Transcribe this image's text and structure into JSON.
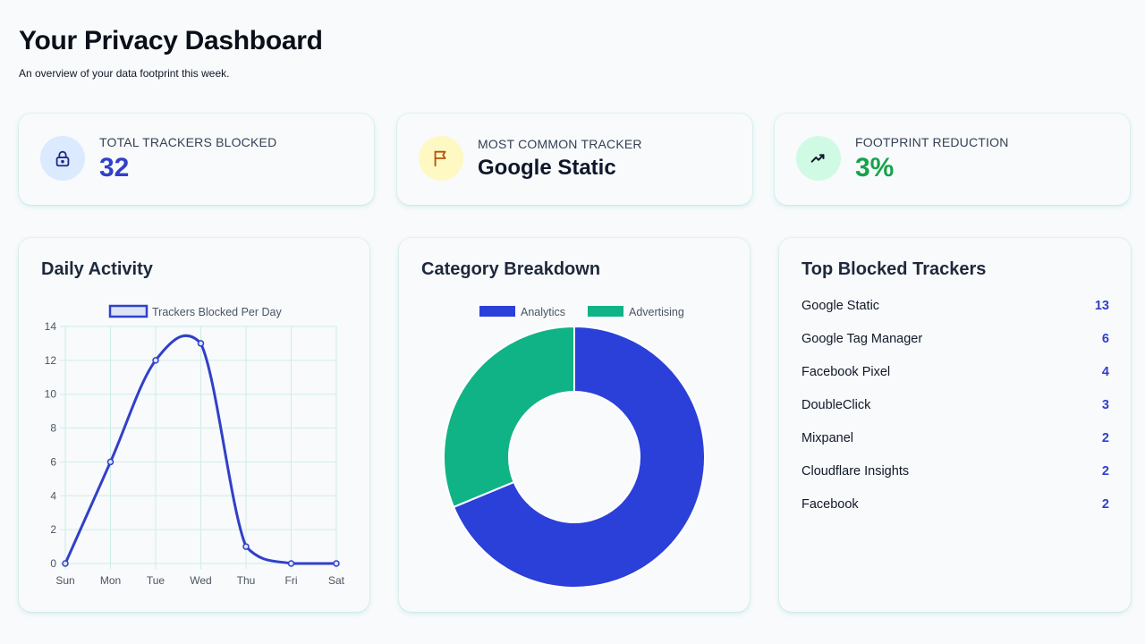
{
  "header": {
    "title": "Your Privacy Dashboard",
    "subtitle": "An overview of your data footprint this week."
  },
  "stats": [
    {
      "label": "TOTAL TRACKERS BLOCKED",
      "value": "32",
      "icon": "lock-icon",
      "value_color": "#3140c8",
      "icon_bg": "#dbeafe"
    },
    {
      "label": "MOST COMMON TRACKER",
      "value": "Google Static",
      "icon": "flag-icon",
      "value_color": "#0f172a",
      "icon_bg": "#fef9c3"
    },
    {
      "label": "FOOTPRINT REDUCTION",
      "value": "3%",
      "icon": "trending-up-icon",
      "value_color": "#16a34a",
      "icon_bg": "#d1fae5"
    }
  ],
  "daily_activity": {
    "title": "Daily Activity"
  },
  "category_breakdown": {
    "title": "Category Breakdown"
  },
  "top_trackers": {
    "title": "Top Blocked Trackers",
    "items": [
      {
        "name": "Google Static",
        "count": "13"
      },
      {
        "name": "Google Tag Manager",
        "count": "6"
      },
      {
        "name": "Facebook Pixel",
        "count": "4"
      },
      {
        "name": "DoubleClick",
        "count": "3"
      },
      {
        "name": "Mixpanel",
        "count": "2"
      },
      {
        "name": "Cloudflare Insights",
        "count": "2"
      },
      {
        "name": "Facebook",
        "count": "2"
      }
    ]
  },
  "chart_data": [
    {
      "type": "line",
      "categories": [
        "Sun",
        "Mon",
        "Tue",
        "Wed",
        "Thu",
        "Fri",
        "Sat"
      ],
      "series": [
        {
          "name": "Trackers Blocked Per Day",
          "values": [
            0,
            6,
            12,
            13,
            1,
            0,
            0
          ],
          "color": "#3140c8"
        }
      ],
      "ylim": [
        0,
        14
      ],
      "yticks": [
        0,
        2,
        4,
        6,
        8,
        10,
        12,
        14
      ],
      "grid": true,
      "legend": "top"
    },
    {
      "type": "pie",
      "donut": true,
      "labels": [
        "Analytics",
        "Advertising"
      ],
      "values": [
        22,
        10
      ],
      "colors": [
        "#2b3fd9",
        "#10b385"
      ],
      "legend": "top"
    }
  ]
}
